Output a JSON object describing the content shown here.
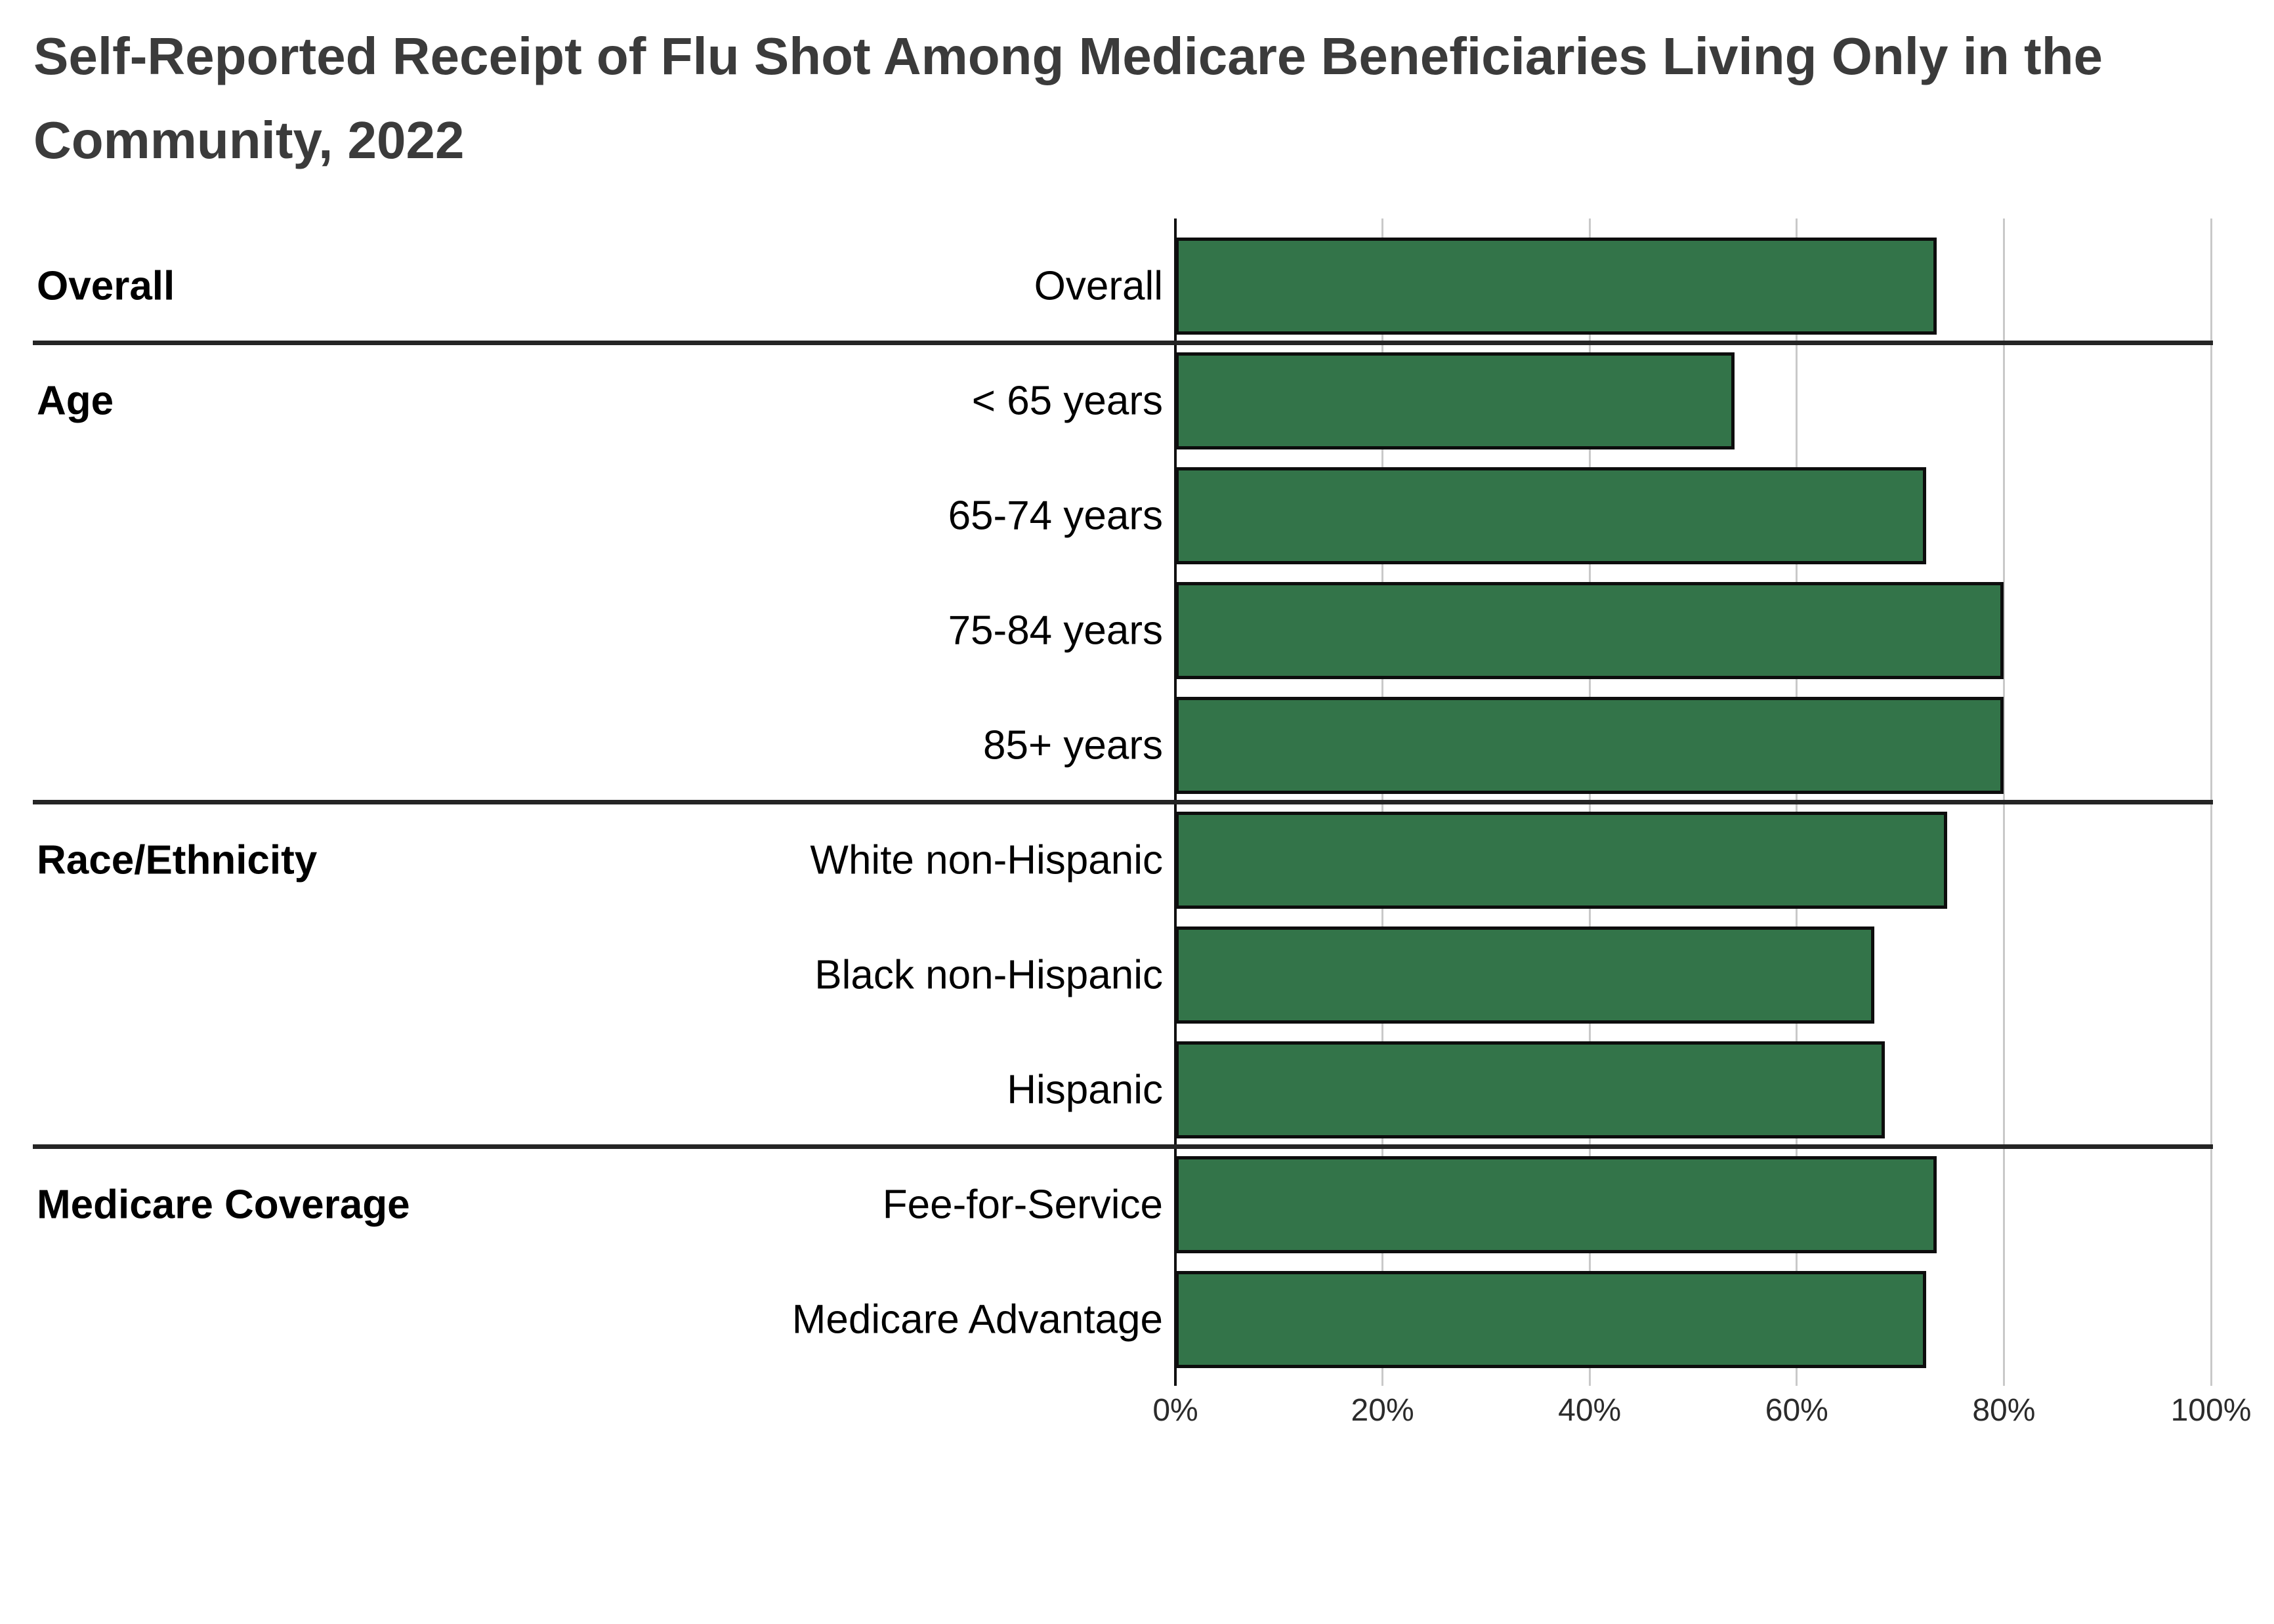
{
  "chart_data": {
    "type": "bar",
    "orientation": "horizontal",
    "title": "Self-Reported Receipt of Flu Shot Among Medicare Beneficiaries Living Only in the Community, 2022",
    "unit": "%",
    "xlim": [
      0,
      100
    ],
    "x_ticks": [
      "0%",
      "20%",
      "40%",
      "60%",
      "80%",
      "100%"
    ],
    "grid": true,
    "legend": false,
    "groups": [
      {
        "label": "Overall",
        "rows": [
          {
            "label": "Overall",
            "value": 73.5
          }
        ]
      },
      {
        "label": "Age",
        "rows": [
          {
            "label": "< 65 years",
            "value": 54
          },
          {
            "label": "65-74 years",
            "value": 72.5
          },
          {
            "label": "75-84 years",
            "value": 80
          },
          {
            "label": "85+ years",
            "value": 80
          }
        ]
      },
      {
        "label": "Race/Ethnicity",
        "rows": [
          {
            "label": "White non-Hispanic",
            "value": 74.5
          },
          {
            "label": "Black non-Hispanic",
            "value": 67.5
          },
          {
            "label": "Hispanic",
            "value": 68.5
          }
        ]
      },
      {
        "label": "Medicare Coverage",
        "rows": [
          {
            "label": "Fee-for-Service",
            "value": 73.5
          },
          {
            "label": "Medicare Advantage",
            "value": 72.5
          }
        ]
      }
    ]
  },
  "styles": {
    "bar_fill": "#337449",
    "bar_border": "#0d0d0d",
    "gridline_color": "#c9c9c9",
    "zero_axis_color": "#111111",
    "separator_color": "#252525",
    "title_color": "#3b3b3b",
    "label_color": "#000000",
    "tick_label_color": "#2b2b2b",
    "background": "#ffffff"
  }
}
